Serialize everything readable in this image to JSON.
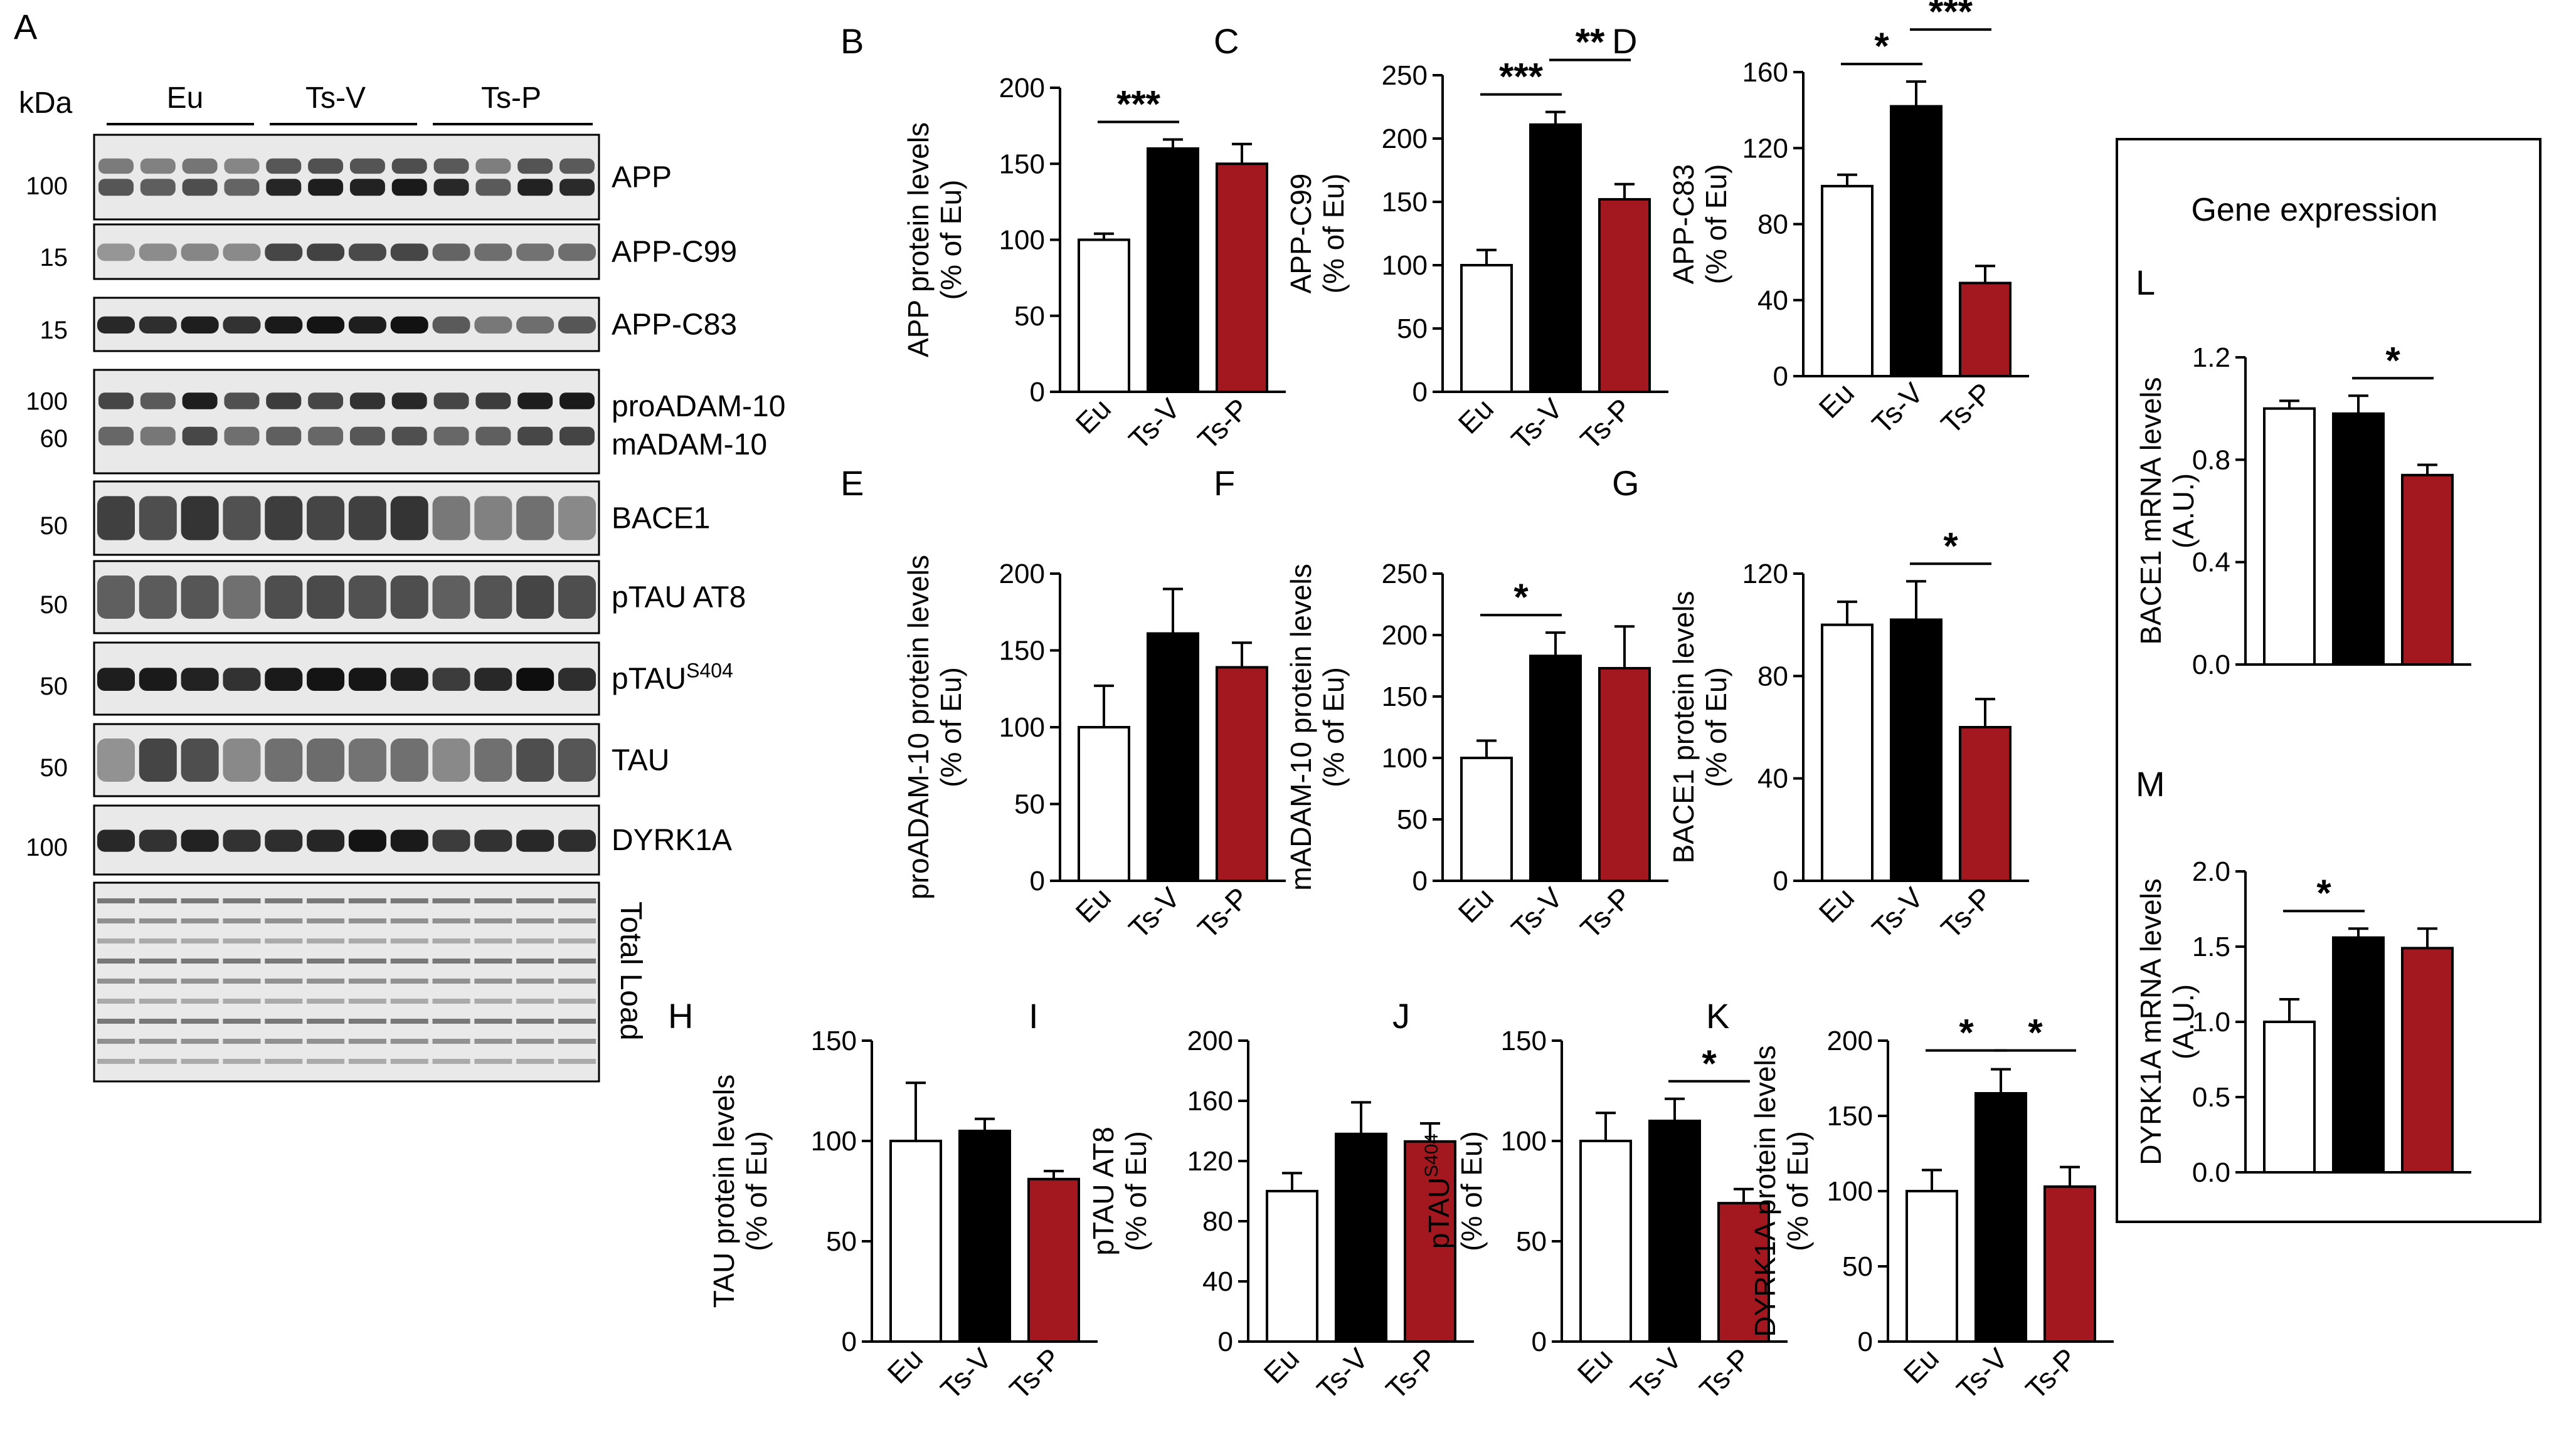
{
  "figure": {
    "panel_A_label": "A",
    "kda_label": "kDa",
    "groups": [
      "Eu",
      "Ts-V",
      "Ts-P"
    ],
    "group_colors": [
      "#ffffff",
      "#000000",
      "#a3181f"
    ],
    "blots": [
      {
        "name": "APP",
        "label": "APP",
        "sup": "",
        "markers": [
          "100"
        ],
        "lanes": [
          0.62,
          0.58,
          0.66,
          0.55,
          0.86,
          0.9,
          0.88,
          0.92,
          0.85,
          0.6,
          0.88,
          0.84
        ],
        "kind": "doublet"
      },
      {
        "name": "APP-C99",
        "label": "APP-C99",
        "sup": "",
        "markers": [
          "15"
        ],
        "lanes": [
          0.3,
          0.35,
          0.38,
          0.36,
          0.7,
          0.72,
          0.68,
          0.7,
          0.55,
          0.5,
          0.48,
          0.5
        ],
        "kind": "single"
      },
      {
        "name": "APP-C83",
        "label": "APP-C83",
        "sup": "",
        "markers": [
          "15"
        ],
        "lanes": [
          0.85,
          0.82,
          0.9,
          0.8,
          0.92,
          0.95,
          0.9,
          0.96,
          0.6,
          0.45,
          0.5,
          0.62
        ],
        "kind": "single"
      },
      {
        "name": "ADAM-10",
        "label": "proADAM-10",
        "label2": "mADAM-10",
        "sup": "",
        "markers": [
          "100",
          "60"
        ],
        "lanes": [
          0.7,
          0.6,
          0.9,
          0.65,
          0.75,
          0.7,
          0.8,
          0.85,
          0.7,
          0.75,
          0.9,
          0.92
        ],
        "kind": "double"
      },
      {
        "name": "BACE1",
        "label": "BACE1",
        "sup": "",
        "markers": [
          "50"
        ],
        "lanes": [
          0.88,
          0.8,
          0.95,
          0.78,
          0.9,
          0.85,
          0.88,
          0.95,
          0.55,
          0.5,
          0.6,
          0.45
        ],
        "kind": "smear"
      },
      {
        "name": "pTAU-AT8",
        "label": "pTAU AT8",
        "sup": "",
        "markers": [
          "50"
        ],
        "lanes": [
          0.7,
          0.72,
          0.75,
          0.6,
          0.8,
          0.82,
          0.78,
          0.8,
          0.7,
          0.76,
          0.85,
          0.8
        ],
        "kind": "smear"
      },
      {
        "name": "pTAU-S404",
        "label": "pTAU",
        "sup": "S404",
        "markers": [
          "50"
        ],
        "lanes": [
          0.9,
          0.92,
          0.88,
          0.8,
          0.92,
          0.95,
          0.94,
          0.9,
          0.75,
          0.85,
          0.98,
          0.82
        ],
        "kind": "single"
      },
      {
        "name": "TAU",
        "label": "TAU",
        "sup": "",
        "markers": [
          "50"
        ],
        "lanes": [
          0.4,
          0.85,
          0.8,
          0.45,
          0.6,
          0.62,
          0.58,
          0.6,
          0.45,
          0.6,
          0.8,
          0.75
        ],
        "kind": "smear"
      },
      {
        "name": "DYRK1A",
        "label": "DYRK1A",
        "sup": "",
        "markers": [
          "100"
        ],
        "lanes": [
          0.85,
          0.8,
          0.88,
          0.8,
          0.82,
          0.86,
          0.95,
          0.92,
          0.75,
          0.8,
          0.85,
          0.82
        ],
        "kind": "single"
      },
      {
        "name": "Total-Load",
        "label": "Total Load",
        "sup": "",
        "markers": [],
        "lanes": [
          0.5,
          0.5,
          0.5,
          0.5,
          0.5,
          0.5,
          0.5,
          0.5,
          0.5,
          0.5,
          0.5,
          0.5
        ],
        "kind": "total"
      }
    ],
    "gene_box_title": "Gene expression"
  },
  "chart_data": [
    {
      "panel": "B",
      "type": "bar",
      "categories": [
        "Eu",
        "Ts-V",
        "Ts-P"
      ],
      "values": [
        100,
        160,
        150
      ],
      "errors": [
        4,
        6,
        13
      ],
      "ylabel": [
        "APP protein levels",
        "(% of Eu)"
      ],
      "ylim": [
        0,
        200
      ],
      "yticks": [
        "0",
        "50",
        "100",
        "150",
        "200"
      ],
      "sig": [
        {
          "from": 0,
          "to": 1,
          "label": "***"
        }
      ]
    },
    {
      "panel": "C",
      "type": "bar",
      "categories": [
        "Eu",
        "Ts-V",
        "Ts-P"
      ],
      "values": [
        100,
        211,
        152
      ],
      "errors": [
        12,
        10,
        12
      ],
      "ylabel": [
        "APP-C99",
        "(% of Eu)"
      ],
      "ylim": [
        0,
        250
      ],
      "yticks": [
        "0",
        "50",
        "100",
        "150",
        "200",
        "250"
      ],
      "sig": [
        {
          "from": 0,
          "to": 1,
          "label": "***"
        },
        {
          "from": 1,
          "to": 2,
          "label": "**"
        }
      ]
    },
    {
      "panel": "D",
      "type": "bar",
      "categories": [
        "Eu",
        "Ts-V",
        "Ts-P"
      ],
      "values": [
        100,
        142,
        49
      ],
      "errors": [
        6,
        13,
        9
      ],
      "ylabel": [
        "APP-C83",
        "(% of Eu)"
      ],
      "ylim": [
        0,
        160
      ],
      "yticks": [
        "0",
        "40",
        "80",
        "120",
        "160"
      ],
      "sig": [
        {
          "from": 0,
          "to": 1,
          "label": "*"
        },
        {
          "from": 1,
          "to": 2,
          "label": "***"
        }
      ]
    },
    {
      "panel": "E",
      "type": "bar",
      "categories": [
        "Eu",
        "Ts-V",
        "Ts-P"
      ],
      "values": [
        100,
        161,
        139
      ],
      "errors": [
        27,
        29,
        16
      ],
      "ylabel": [
        "proADAM-10 protein levels",
        "(% of Eu)"
      ],
      "ylim": [
        0,
        200
      ],
      "yticks": [
        "0",
        "50",
        "100",
        "150",
        "200"
      ],
      "sig": []
    },
    {
      "panel": "F",
      "type": "bar",
      "categories": [
        "Eu",
        "Ts-V",
        "Ts-P"
      ],
      "values": [
        100,
        183,
        173
      ],
      "errors": [
        14,
        19,
        34
      ],
      "ylabel": [
        "mADAM-10 protein levels",
        "(% of Eu)"
      ],
      "ylim": [
        0,
        250
      ],
      "yticks": [
        "0",
        "50",
        "100",
        "150",
        "200",
        "250"
      ],
      "sig": [
        {
          "from": 0,
          "to": 1,
          "label": "*"
        }
      ]
    },
    {
      "panel": "G",
      "type": "bar",
      "categories": [
        "Eu",
        "Ts-V",
        "Ts-P"
      ],
      "values": [
        100,
        102,
        60
      ],
      "errors": [
        9,
        15,
        11
      ],
      "ylabel": [
        "BACE1 protein levels",
        "(% of Eu)"
      ],
      "ylim": [
        0,
        120
      ],
      "yticks": [
        "0",
        "40",
        "80",
        "120"
      ],
      "sig": [
        {
          "from": 1,
          "to": 2,
          "label": "*"
        }
      ]
    },
    {
      "panel": "H",
      "type": "bar",
      "categories": [
        "Eu",
        "Ts-V",
        "Ts-P"
      ],
      "values": [
        100,
        105,
        81
      ],
      "errors": [
        29,
        6,
        4
      ],
      "ylabel": [
        "TAU protein levels",
        "(% of Eu)"
      ],
      "ylim": [
        0,
        150
      ],
      "yticks": [
        "0",
        "50",
        "100",
        "150"
      ],
      "sig": []
    },
    {
      "panel": "I",
      "type": "bar",
      "categories": [
        "Eu",
        "Ts-V",
        "Ts-P"
      ],
      "values": [
        100,
        138,
        133
      ],
      "errors": [
        12,
        21,
        12
      ],
      "ylabel": [
        "pTAU AT8",
        "(% of Eu)"
      ],
      "ylim": [
        0,
        200
      ],
      "yticks": [
        "0",
        "40",
        "80",
        "120",
        "160",
        "200"
      ],
      "sig": []
    },
    {
      "panel": "J",
      "type": "bar",
      "categories": [
        "Eu",
        "Ts-V",
        "Ts-P"
      ],
      "values": [
        100,
        110,
        69
      ],
      "errors": [
        14,
        11,
        7
      ],
      "ylabel": [
        "pTAU",
        "(% of Eu)"
      ],
      "ylabel_sup": "S404",
      "ylim": [
        0,
        150
      ],
      "yticks": [
        "0",
        "50",
        "100",
        "150"
      ],
      "sig": [
        {
          "from": 1,
          "to": 2,
          "label": "*"
        }
      ]
    },
    {
      "panel": "K",
      "type": "bar",
      "categories": [
        "Eu",
        "Ts-V",
        "Ts-P"
      ],
      "values": [
        100,
        165,
        103
      ],
      "errors": [
        14,
        16,
        13
      ],
      "ylabel": [
        "DYRK1A protein levels",
        "(% of Eu)"
      ],
      "ylim": [
        0,
        200
      ],
      "yticks": [
        "0",
        "50",
        "100",
        "150",
        "200"
      ],
      "sig": [
        {
          "from": 0,
          "to": 1,
          "label": "*"
        },
        {
          "from": 1,
          "to": 2,
          "label": "*"
        }
      ]
    },
    {
      "panel": "L",
      "type": "bar",
      "categories": [
        "",
        "",
        ""
      ],
      "values": [
        1.0,
        0.98,
        0.74
      ],
      "errors": [
        0.03,
        0.07,
        0.04
      ],
      "ylabel": [
        "BACE1 mRNA levels",
        "(A.U.)"
      ],
      "ylim": [
        0,
        1.2
      ],
      "yticks": [
        "0.0",
        "0.4",
        "0.8",
        "1.2"
      ],
      "sig": [
        {
          "from": 1,
          "to": 2,
          "label": "*"
        }
      ]
    },
    {
      "panel": "M",
      "type": "bar",
      "categories": [
        "",
        "",
        ""
      ],
      "values": [
        1.0,
        1.56,
        1.49
      ],
      "errors": [
        0.15,
        0.06,
        0.13
      ],
      "ylabel": [
        "DYRK1A mRNA levels",
        "(A.U.)"
      ],
      "ylim": [
        0,
        2.0
      ],
      "yticks": [
        "0.0",
        "0.5",
        "1.0",
        "1.5",
        "2.0"
      ],
      "sig": [
        {
          "from": 0,
          "to": 1,
          "label": "*"
        }
      ]
    }
  ]
}
